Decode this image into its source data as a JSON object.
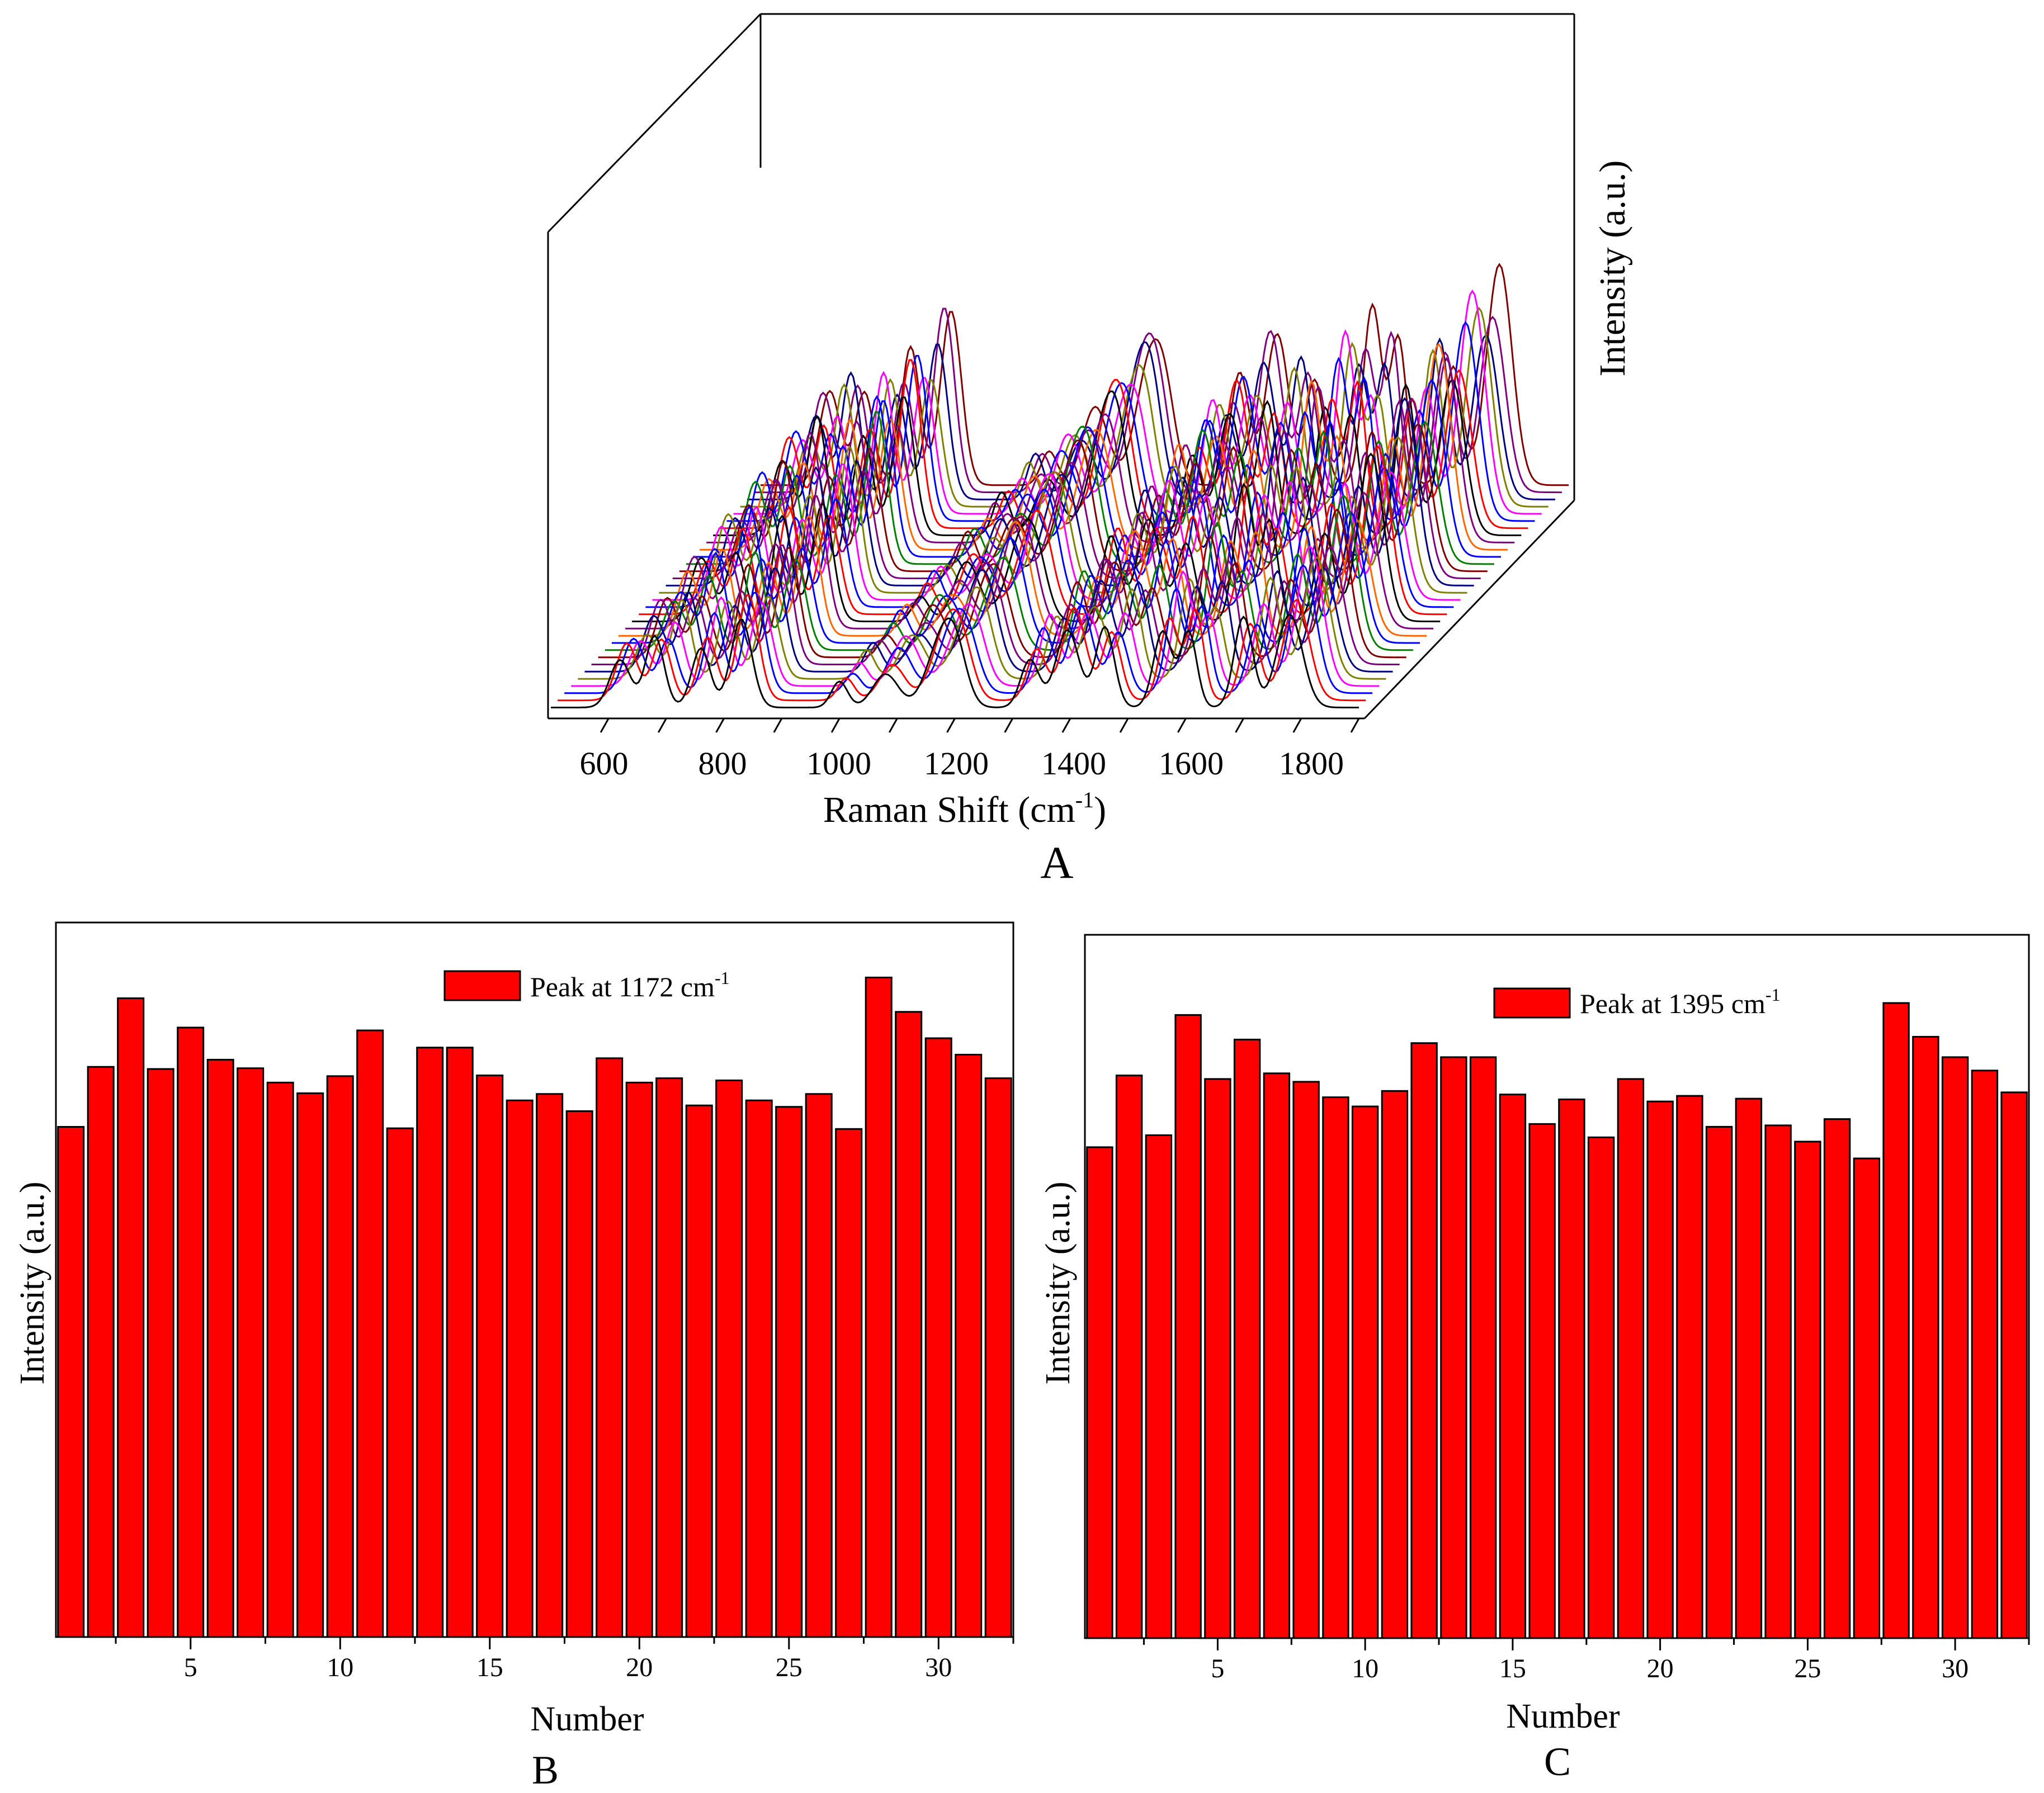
{
  "chart_data": [
    {
      "id": "A",
      "type": "line",
      "projection": "3d-waterfall",
      "panel_label": "A",
      "xlabel": "Raman Shift (cm",
      "xlabel_sup": "-1",
      "xlabel_end": ")",
      "ylabel": "Intensity (a.u.)",
      "x_ticks": [
        "600",
        "800",
        "1000",
        "1200",
        "1400",
        "1600",
        "1800"
      ],
      "xlim": [
        500,
        1900
      ],
      "series_count": 32,
      "series_colors": [
        "#000000",
        "#ff0000",
        "#0000ff",
        "#ff00ff",
        "#808000",
        "#000080",
        "#800080",
        "#800000",
        "#008000",
        "#0000ff",
        "#ff6600",
        "#800080"
      ],
      "peaks": [
        {
          "pos": 620,
          "height": 0.42,
          "width": 18
        },
        {
          "pos": 680,
          "height": 0.55,
          "width": 16
        },
        {
          "pos": 760,
          "height": 0.62,
          "width": 16
        },
        {
          "pos": 830,
          "height": 0.78,
          "width": 18
        },
        {
          "pos": 1000,
          "height": 0.2,
          "width": 14
        },
        {
          "pos": 1080,
          "height": 0.35,
          "width": 22
        },
        {
          "pos": 1172,
          "height": 0.48,
          "width": 24
        },
        {
          "pos": 1200,
          "height": 0.42,
          "width": 20
        },
        {
          "pos": 1330,
          "height": 0.5,
          "width": 16
        },
        {
          "pos": 1395,
          "height": 0.68,
          "width": 20
        },
        {
          "pos": 1460,
          "height": 0.62,
          "width": 16
        },
        {
          "pos": 1560,
          "height": 0.8,
          "width": 16
        },
        {
          "pos": 1605,
          "height": 0.66,
          "width": 14
        },
        {
          "pos": 1700,
          "height": 0.7,
          "width": 16
        },
        {
          "pos": 1780,
          "height": 0.98,
          "width": 22
        }
      ]
    },
    {
      "id": "B",
      "type": "bar",
      "panel_label": "B",
      "legend": "Peak at 1172 cm",
      "legend_sup": "-1",
      "xlabel": "Number",
      "ylabel": "Intensity (a.u.)",
      "x_ticks": [
        "5",
        "10",
        "15",
        "20",
        "25",
        "30"
      ],
      "xlim": [
        0.5,
        32.5
      ],
      "ylim": [
        0,
        100
      ],
      "color": "#ff0000",
      "categories": [
        1,
        2,
        3,
        4,
        5,
        6,
        7,
        8,
        9,
        10,
        11,
        12,
        13,
        14,
        15,
        16,
        17,
        18,
        19,
        20,
        21,
        22,
        23,
        24,
        25,
        26,
        27,
        28,
        29,
        30,
        31,
        32
      ],
      "values": [
        71.4,
        79.8,
        89.4,
        79.5,
        85.3,
        80.8,
        79.6,
        77.6,
        76.1,
        78.5,
        84.9,
        71.2,
        82.5,
        82.5,
        78.6,
        75.1,
        76.0,
        73.6,
        81.0,
        77.6,
        78.2,
        74.4,
        77.9,
        75.1,
        74.2,
        76.0,
        71.1,
        92.3,
        87.5,
        83.8,
        81.5,
        78.2
      ]
    },
    {
      "id": "C",
      "type": "bar",
      "panel_label": "C",
      "legend": "Peak at 1395 cm",
      "legend_sup": "-1",
      "xlabel": "Number",
      "ylabel": "Intensity (a.u.)",
      "x_ticks": [
        "5",
        "10",
        "15",
        "20",
        "25",
        "30"
      ],
      "xlim": [
        0.5,
        32.5
      ],
      "ylim": [
        0,
        100
      ],
      "color": "#ff0000",
      "categories": [
        1,
        2,
        3,
        4,
        5,
        6,
        7,
        8,
        9,
        10,
        11,
        12,
        13,
        14,
        15,
        16,
        17,
        18,
        19,
        20,
        21,
        22,
        23,
        24,
        25,
        26,
        27,
        28,
        29,
        30,
        31,
        32
      ],
      "values": [
        69.8,
        80.0,
        71.5,
        88.6,
        79.5,
        85.1,
        80.3,
        79.1,
        76.9,
        75.6,
        77.8,
        84.6,
        82.6,
        82.6,
        77.3,
        73.1,
        76.6,
        71.2,
        79.5,
        76.3,
        77.1,
        72.7,
        76.7,
        72.9,
        70.6,
        73.8,
        68.2,
        90.3,
        85.5,
        82.6,
        80.7,
        77.6
      ]
    }
  ]
}
